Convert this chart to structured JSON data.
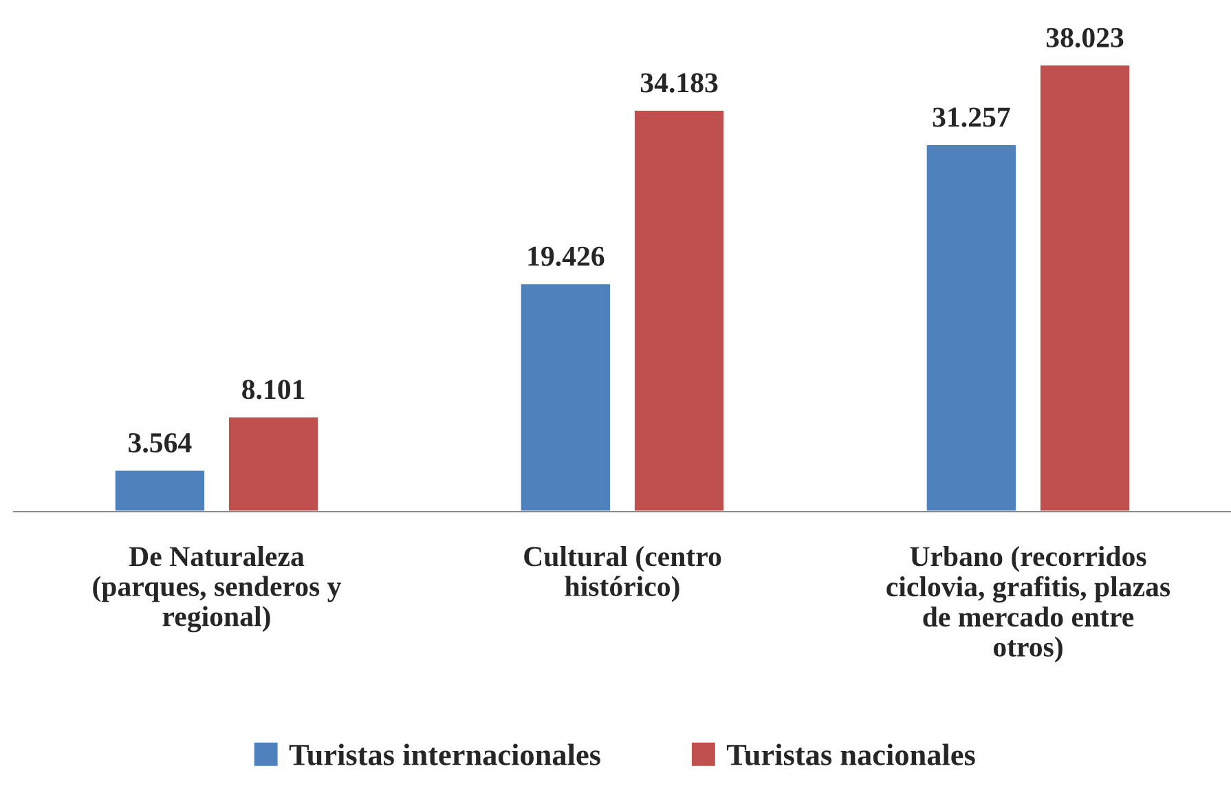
{
  "chart_data": {
    "type": "bar",
    "categories": [
      "De Naturaleza\n(parques, senderos y\nregional)",
      "Cultural (centro\nhistórico)",
      "Urbano (recorridos\nciclovia, grafitis, plazas\nde mercado entre\notros)"
    ],
    "series": [
      {
        "name": "Turistas internacionales",
        "color": "#4f81bd",
        "values": [
          3.564,
          19.426,
          31.257
        ],
        "value_labels": [
          "3.564",
          "19.426",
          "31.257"
        ]
      },
      {
        "name": "Turistas nacionales",
        "color": "#c0504d",
        "values": [
          8.101,
          34.183,
          38.023
        ],
        "value_labels": [
          "8.101",
          "34.183",
          "38.023"
        ]
      }
    ],
    "legend": "bottom",
    "grid": false
  }
}
